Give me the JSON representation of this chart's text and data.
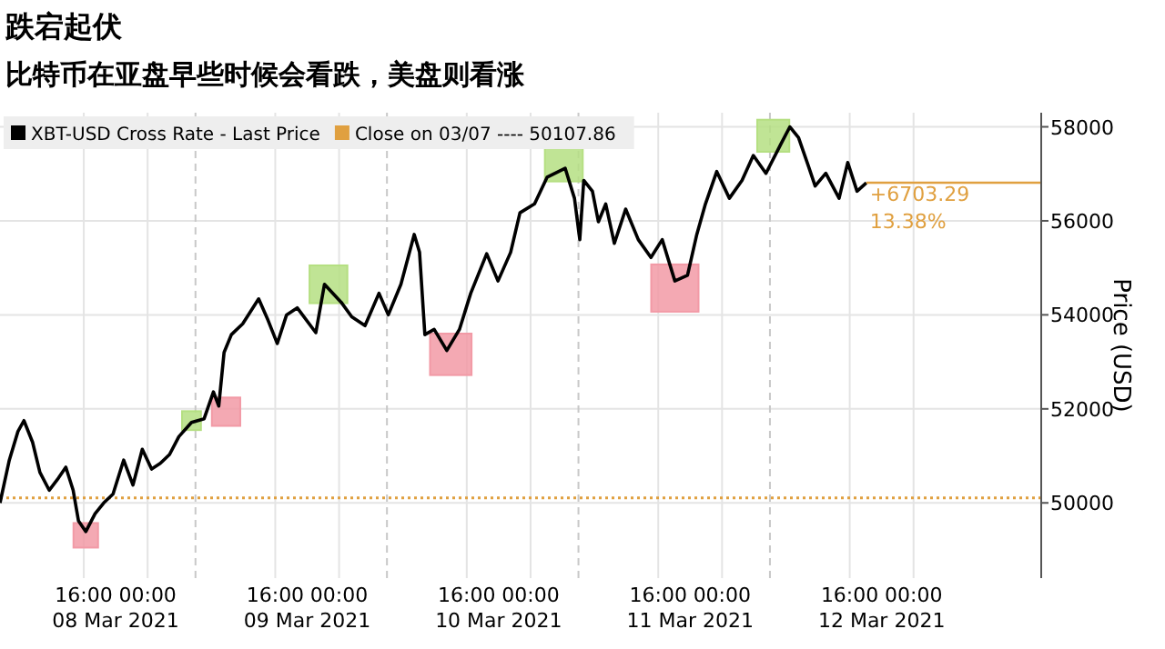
{
  "chart_data": {
    "type": "line",
    "title": "跌宕起伏",
    "subtitle": "比特币在亚盘早些时候会看跌，美盘则看涨",
    "ylabel": "Price (USD)",
    "legend": "top left",
    "grid": true,
    "xlim": [
      "2021-03-08T05:30",
      "2021-03-13T16:00"
    ],
    "xticks": [
      {
        "value": "2021-03-08T16:00",
        "label": "16:00"
      },
      {
        "value": "2021-03-09T00:00",
        "label": "00:00"
      },
      {
        "value": "2021-03-09T16:00",
        "label": "16:00"
      },
      {
        "value": "2021-03-10T00:00",
        "label": "00:00"
      },
      {
        "value": "2021-03-10T16:00",
        "label": "16:00"
      },
      {
        "value": "2021-03-11T00:00",
        "label": "00:00"
      },
      {
        "value": "2021-03-11T16:00",
        "label": "16:00"
      },
      {
        "value": "2021-03-12T00:00",
        "label": "00:00"
      },
      {
        "value": "2021-03-12T16:00",
        "label": "16:00"
      },
      {
        "value": "2021-03-13T00:00",
        "label": "00:00"
      }
    ],
    "ylim": [
      48400,
      58300
    ],
    "yticks": [
      50000,
      52000,
      54000,
      56000,
      58000
    ],
    "series": [
      {
        "type": "bubble",
        "marker": "square",
        "color": "#b5df82",
        "x": [
          "2021-03-09T05:30",
          "2021-03-09T22:40",
          "2021-03-11T04:10",
          "2021-03-12T06:25"
        ],
        "values": [
          51750,
          54650,
          57240,
          57810
        ],
        "sizes": [
          0.16,
          0.64,
          0.64,
          0.46
        ]
      },
      {
        "type": "bubble",
        "marker": "square",
        "color": "#f29aa6",
        "x": [
          "2021-03-08T16:15",
          "2021-03-09T09:50",
          "2021-03-10T14:00",
          "2021-03-11T18:05"
        ],
        "values": [
          49310,
          51940,
          53160,
          54570
        ],
        "sizes": [
          0.27,
          0.36,
          0.77,
          1
        ]
      },
      {
        "name": "XBT-USD Cross Rate - Last Price",
        "color": "#000000",
        "x": [
          "2021-03-08T05:30",
          "2021-03-08T06:40",
          "2021-03-08T07:45",
          "2021-03-08T08:30",
          "2021-03-08T09:35",
          "2021-03-08T10:30",
          "2021-03-08T11:40",
          "2021-03-08T12:50",
          "2021-03-08T13:45",
          "2021-03-08T14:40",
          "2021-03-08T15:20",
          "2021-03-08T16:15",
          "2021-03-08T17:25",
          "2021-03-08T18:30",
          "2021-03-08T19:40",
          "2021-03-08T21:00",
          "2021-03-08T22:10",
          "2021-03-08T23:20",
          "2021-03-09T00:30",
          "2021-03-09T01:35",
          "2021-03-09T02:45",
          "2021-03-09T03:55",
          "2021-03-09T05:30",
          "2021-03-09T07:05",
          "2021-03-09T08:15",
          "2021-03-09T08:55",
          "2021-03-09T09:35",
          "2021-03-09T10:30",
          "2021-03-09T11:55",
          "2021-03-09T13:55",
          "2021-03-09T15:05",
          "2021-03-09T16:15",
          "2021-03-09T17:25",
          "2021-03-09T18:45",
          "2021-03-09T21:05",
          "2021-03-09T22:10",
          "2021-03-10T00:15",
          "2021-03-10T01:35",
          "2021-03-10T03:15",
          "2021-03-10T05:00",
          "2021-03-10T06:10",
          "2021-03-10T07:45",
          "2021-03-10T09:25",
          "2021-03-10T10:05",
          "2021-03-10T10:45",
          "2021-03-10T11:55",
          "2021-03-10T13:30",
          "2021-03-10T15:05",
          "2021-03-10T16:30",
          "2021-03-10T18:30",
          "2021-03-10T19:55",
          "2021-03-10T21:30",
          "2021-03-10T22:40",
          "2021-03-11T00:30",
          "2021-03-11T02:05",
          "2021-03-11T04:20",
          "2021-03-11T05:30",
          "2021-03-11T06:10",
          "2021-03-11T06:40",
          "2021-03-11T07:45",
          "2021-03-11T08:30",
          "2021-03-11T09:25",
          "2021-03-11T10:30",
          "2021-03-11T11:55",
          "2021-03-11T13:30",
          "2021-03-11T15:05",
          "2021-03-11T16:30",
          "2021-03-11T18:05",
          "2021-03-11T19:40",
          "2021-03-11T20:50",
          "2021-03-11T21:55",
          "2021-03-11T23:20",
          "2021-03-12T00:55",
          "2021-03-12T02:30",
          "2021-03-12T03:55",
          "2021-03-12T05:30",
          "2021-03-12T07:20",
          "2021-03-12T08:30",
          "2021-03-12T09:35",
          "2021-03-12T10:45",
          "2021-03-12T11:40",
          "2021-03-12T13:00",
          "2021-03-12T14:40",
          "2021-03-12T15:45",
          "2021-03-12T16:55",
          "2021-03-12T18:05"
        ],
        "values": [
          50000,
          50910,
          51520,
          51750,
          51290,
          50650,
          50270,
          50530,
          50760,
          50270,
          49620,
          49390,
          49770,
          50000,
          50190,
          50910,
          50380,
          51140,
          50720,
          50840,
          51030,
          51410,
          51710,
          51790,
          52360,
          52060,
          53200,
          53580,
          53810,
          54340,
          53890,
          53390,
          54000,
          54150,
          53620,
          54650,
          54270,
          53960,
          53770,
          54460,
          54000,
          54650,
          55710,
          55330,
          53580,
          53690,
          53240,
          53690,
          54460,
          55300,
          54720,
          55330,
          56170,
          56360,
          56930,
          57120,
          56480,
          55600,
          56860,
          56630,
          55980,
          56360,
          55520,
          56250,
          55600,
          55220,
          55600,
          54720,
          54840,
          55710,
          56360,
          57050,
          56480,
          56860,
          57390,
          57010,
          57620,
          58000,
          57770,
          57200,
          56740,
          57010,
          56480,
          57240,
          56630,
          56810
        ]
      }
    ],
    "ref_lines": [
      {
        "axis": "y",
        "value": 50107.86,
        "label": "Close on 03/07 ---- 50107.86",
        "color": "#e0a040",
        "line_style": "dotted"
      },
      {
        "axis": "x",
        "value": "2021-03-09T06:00",
        "color": "#c8c8c8",
        "line_style": "dashed"
      },
      {
        "axis": "x",
        "value": "2021-03-10T06:00",
        "color": "#c8c8c8",
        "line_style": "dashed"
      },
      {
        "axis": "x",
        "value": "2021-03-11T06:00",
        "color": "#c8c8c8",
        "line_style": "dashed"
      },
      {
        "axis": "x",
        "value": "2021-03-12T06:00",
        "color": "#c8c8c8",
        "line_style": "dashed"
      }
    ],
    "annotations": [
      {
        "text": "+6703.29",
        "x": "2021-03-12T18:05",
        "y": 56810
      },
      {
        "text": "13.38%",
        "x": "2021-03-12T18:05",
        "y": 56810
      },
      "08 Mar 2021",
      "09 Mar 2021",
      "10 Mar 2021",
      "11 Mar 2021",
      "12 Mar 2021"
    ]
  }
}
